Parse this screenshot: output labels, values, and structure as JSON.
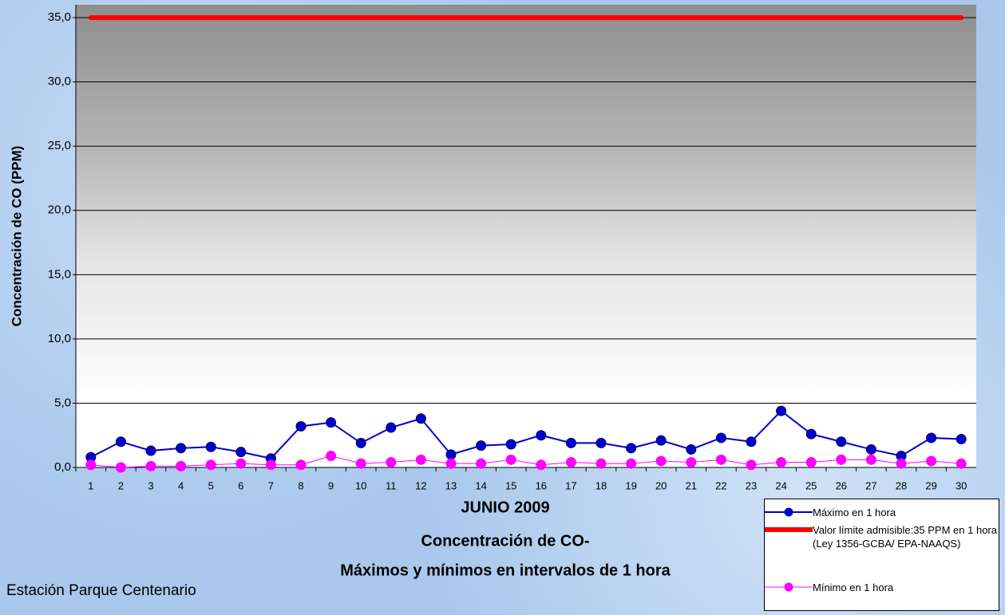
{
  "chart_data": {
    "type": "line",
    "title": [
      "JUNIO 2009",
      "Concentración de CO-",
      "Máximos y mínimos en intervalos de 1 hora"
    ],
    "annotation": "Estación Parque Centenario",
    "y_label": "Concentración de CO (PPM)",
    "categories": [
      "1",
      "2",
      "3",
      "4",
      "5",
      "6",
      "7",
      "8",
      "9",
      "10",
      "11",
      "12",
      "13",
      "14",
      "15",
      "16",
      "17",
      "18",
      "19",
      "20",
      "21",
      "22",
      "23",
      "24",
      "25",
      "26",
      "27",
      "28",
      "29",
      "30"
    ],
    "series": [
      {
        "name": "Máximo en 1 hora",
        "color": "#0000cc",
        "marker": true,
        "width": 2,
        "values": [
          0.8,
          2.0,
          1.3,
          1.5,
          1.6,
          1.2,
          0.7,
          3.2,
          3.5,
          1.9,
          3.1,
          3.8,
          1.0,
          1.7,
          1.8,
          2.5,
          1.9,
          1.9,
          1.5,
          2.1,
          1.4,
          2.3,
          2.0,
          4.4,
          2.6,
          2.0,
          1.4,
          0.9,
          2.3,
          2.2
        ]
      },
      {
        "name": "Valor límite admisible:35 PPM en 1 hora (Ley 1356-GCBA/ EPA-NAAQS)",
        "color": "#ff0000",
        "marker": false,
        "width": 6,
        "values": [
          35,
          35,
          35,
          35,
          35,
          35,
          35,
          35,
          35,
          35,
          35,
          35,
          35,
          35,
          35,
          35,
          35,
          35,
          35,
          35,
          35,
          35,
          35,
          35,
          35,
          35,
          35,
          35,
          35,
          35
        ]
      },
      {
        "name": "Mínimo en 1 hora",
        "color": "#ff00ff",
        "marker": true,
        "width": 1,
        "values": [
          0.2,
          0.0,
          0.1,
          0.1,
          0.2,
          0.3,
          0.2,
          0.2,
          0.9,
          0.3,
          0.4,
          0.6,
          0.3,
          0.3,
          0.6,
          0.2,
          0.4,
          0.3,
          0.3,
          0.5,
          0.4,
          0.6,
          0.2,
          0.4,
          0.4,
          0.6,
          0.6,
          0.3,
          0.5,
          0.3
        ]
      }
    ],
    "ylim": [
      0,
      36
    ],
    "yticks": [
      {
        "value": 0,
        "label": "0,0"
      },
      {
        "value": 5,
        "label": "5,0"
      },
      {
        "value": 10,
        "label": "10,0"
      },
      {
        "value": 15,
        "label": "15,0"
      },
      {
        "value": 20,
        "label": "20,0"
      },
      {
        "value": 25,
        "label": "25,0"
      },
      {
        "value": 30,
        "label": "30,0"
      },
      {
        "value": 35,
        "label": "35,0"
      }
    ],
    "grid": true
  }
}
